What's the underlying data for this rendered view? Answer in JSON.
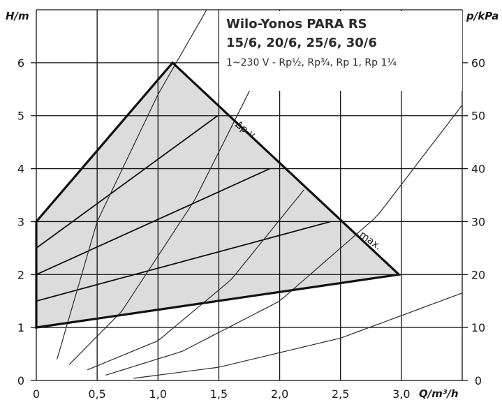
{
  "chart_data": {
    "type": "line",
    "title": "Wilo-Yonos PARA RS",
    "subtitle": "15/6, 20/6, 25/6, 30/6",
    "caption": "1~230 V - Rp½, Rp¾, Rp 1, Rp 1¼",
    "xlabel": "Q/m³/h",
    "ylabel": "H/m",
    "y2label": "p/kPa",
    "xlim": [
      0,
      3.5
    ],
    "ylim": [
      0,
      7
    ],
    "y2lim": [
      0,
      70
    ],
    "xticks": [
      "0",
      "0,5",
      "1,0",
      "1,5",
      "2,0",
      "2,5",
      "3,0"
    ],
    "yticks": [
      "0",
      "1",
      "2",
      "3",
      "4",
      "5",
      "6"
    ],
    "y2ticks": [
      "0",
      "10",
      "20",
      "30",
      "40",
      "50",
      "60"
    ],
    "grid": true,
    "operating_field": {
      "fill": "#dcdcdc",
      "x": [
        0,
        1.12,
        2.98,
        0
      ],
      "y": [
        3,
        6,
        2,
        1
      ]
    },
    "speed_lines": {
      "x": [
        [
          0,
          1.49
        ],
        [
          0,
          1.92
        ],
        [
          0,
          2.42
        ]
      ],
      "y": [
        [
          2.5,
          5.0
        ],
        [
          2.0,
          4.0
        ],
        [
          1.5,
          3.0
        ]
      ]
    },
    "system_curves": {
      "x": [
        [
          0.17,
          0.5,
          1.0,
          1.4
        ],
        [
          0.27,
          0.7,
          1.3,
          2.0
        ],
        [
          0.42,
          1.0,
          1.6,
          2.2
        ],
        [
          0.57,
          1.2,
          2.0,
          2.8,
          3.5
        ],
        [
          0.8,
          1.5,
          2.5,
          3.5
        ]
      ],
      "y": [
        [
          0.4,
          3.0,
          5.4,
          7.0
        ],
        [
          0.3,
          1.3,
          3.4,
          6.6
        ],
        [
          0.2,
          0.75,
          1.9,
          3.6
        ],
        [
          0.1,
          0.55,
          1.5,
          3.1,
          5.2
        ],
        [
          0.04,
          0.25,
          0.8,
          1.65
        ]
      ]
    },
    "annotations": [
      "Δp-v",
      "max."
    ]
  },
  "colors": {
    "field": "#dcdcdc",
    "boundary": "#111111",
    "grid": "#111111",
    "curves": "#2b2b2b",
    "background": "#ffffff"
  }
}
